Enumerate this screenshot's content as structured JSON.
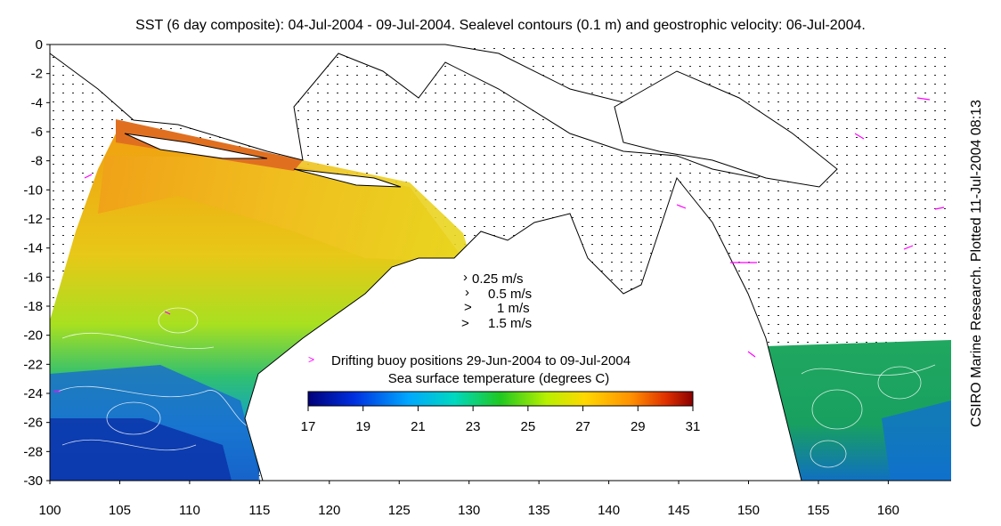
{
  "title": "SST (6 day composite): 04-Jul-2004 - 09-Jul-2004. Sealevel contours (0.1 m) and geostrophic velocity: 06-Jul-2004.",
  "credit": "CSIRO Marine Research. Plotted 11-Jul-2004 08:13",
  "axes": {
    "x_ticks": [
      "100",
      "105",
      "110",
      "115",
      "120",
      "125",
      "130",
      "135",
      "140",
      "145",
      "150",
      "155",
      "160"
    ],
    "y_ticks": [
      "0",
      "-2",
      "-4",
      "-6",
      "-8",
      "-10",
      "-12",
      "-14",
      "-16",
      "-18",
      "-20",
      "-22",
      "-24",
      "-26",
      "-28",
      "-30"
    ],
    "xlim": [
      100,
      164.5
    ],
    "ylim": [
      -30,
      0
    ]
  },
  "velocity_legend": [
    "0.25 m/s",
    "0.5 m/s",
    "1 m/s",
    "1.5 m/s"
  ],
  "buoy_legend": "Drifting buoy positions 29-Jun-2004 to 09-Jul-2004",
  "colorbar": {
    "title": "Sea surface temperature (degrees C)",
    "ticks": [
      "17",
      "19",
      "21",
      "23",
      "25",
      "27",
      "29",
      "31"
    ],
    "range": [
      17,
      31
    ],
    "colors": [
      "#000080",
      "#0000ff",
      "#00b4ff",
      "#00e0a0",
      "#30d000",
      "#c8f000",
      "#ffd000",
      "#ff8000",
      "#e02000",
      "#800000"
    ]
  },
  "colors": {
    "land": "#ffffff",
    "coast": "#000000",
    "buoy": "#ff00ff",
    "contour": "#ffffff"
  }
}
